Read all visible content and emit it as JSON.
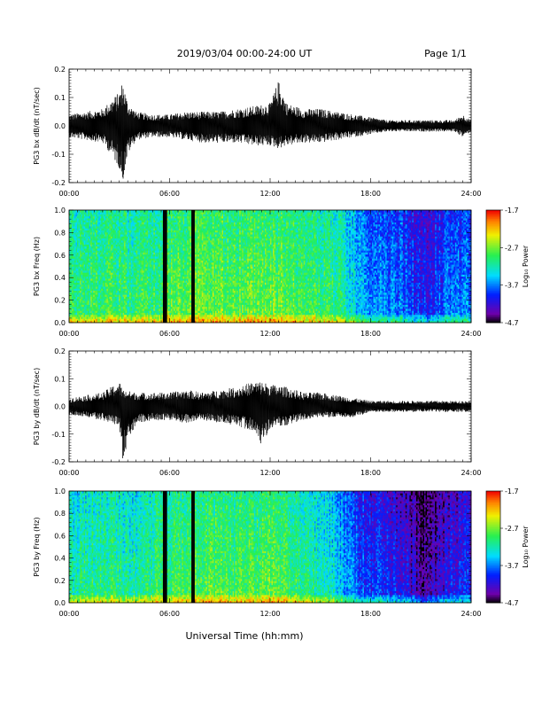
{
  "header": {
    "date_range": "2019/03/04  00:00-24:00 UT",
    "page": "Page 1/1"
  },
  "xaxis": {
    "label": "Universal Time (hh:mm)",
    "ticks": [
      "00:00",
      "06:00",
      "12:00",
      "18:00",
      "24:00"
    ]
  },
  "colorbar": {
    "label": "Log₁₀ Power",
    "ticks": [
      "-1.7",
      "-2.7",
      "-3.7",
      "-4.7"
    ],
    "range": [
      -4.7,
      -1.7
    ]
  },
  "chart_data": [
    {
      "type": "line",
      "ylabel": "PG3 bx dB/dt (nT/sec)",
      "xlim": [
        0,
        24
      ],
      "ylim": [
        -0.2,
        0.2
      ],
      "yticks": [
        "0.2",
        "0.1",
        "0.0",
        "-0.1",
        "-0.2"
      ],
      "envelope": {
        "x_hours": [
          0,
          1,
          2,
          2.5,
          3,
          3.2,
          3.5,
          4,
          5,
          6,
          7,
          8,
          9,
          10,
          11,
          12,
          12.5,
          13,
          14,
          15,
          16,
          17,
          18,
          19,
          20,
          21,
          22,
          23,
          23.5,
          24
        ],
        "max": [
          0.04,
          0.05,
          0.06,
          0.09,
          0.12,
          0.16,
          0.08,
          0.05,
          0.04,
          0.04,
          0.05,
          0.05,
          0.05,
          0.06,
          0.07,
          0.08,
          0.16,
          0.08,
          0.06,
          0.06,
          0.05,
          0.04,
          0.03,
          0.02,
          0.02,
          0.02,
          0.02,
          0.02,
          0.04,
          0.02
        ],
        "min": [
          -0.04,
          -0.05,
          -0.06,
          -0.1,
          -0.15,
          -0.2,
          -0.1,
          -0.05,
          -0.04,
          -0.04,
          -0.05,
          -0.06,
          -0.06,
          -0.06,
          -0.07,
          -0.07,
          -0.08,
          -0.07,
          -0.06,
          -0.06,
          -0.05,
          -0.04,
          -0.03,
          -0.02,
          -0.02,
          -0.02,
          -0.02,
          -0.02,
          -0.04,
          -0.02
        ]
      }
    },
    {
      "type": "heatmap",
      "ylabel": "PG3 bx Freq (Hz)",
      "xlim": [
        0,
        24
      ],
      "ylim": [
        0,
        1
      ],
      "yticks": [
        "1.0",
        "0.8",
        "0.6",
        "0.4",
        "0.2",
        "0.0"
      ],
      "zlim": [
        -4.7,
        -1.7
      ],
      "power_hours": [
        0,
        2,
        4,
        6,
        8,
        10,
        12,
        14,
        16,
        17,
        18,
        19,
        20,
        21,
        22,
        23,
        24
      ],
      "power_log10": [
        -3.0,
        -2.9,
        -2.95,
        -2.8,
        -2.7,
        -2.75,
        -2.7,
        -2.85,
        -3.0,
        -3.3,
        -3.6,
        -3.7,
        -3.7,
        -4.0,
        -3.8,
        -3.7,
        -3.6
      ],
      "data_gaps_hours": [
        [
          5.6,
          5.85
        ],
        [
          7.3,
          7.5
        ]
      ]
    },
    {
      "type": "line",
      "ylabel": "PG3 by dB/dt (nT/sec)",
      "xlim": [
        0,
        24
      ],
      "ylim": [
        -0.2,
        0.2
      ],
      "yticks": [
        "0.2",
        "0.1",
        "0.0",
        "-0.1",
        "-0.2"
      ],
      "envelope": {
        "x_hours": [
          0,
          1,
          2,
          3,
          3.2,
          4,
          5,
          6,
          7,
          8,
          9,
          10,
          11,
          11.5,
          12,
          13,
          14,
          15,
          16,
          17,
          18,
          19,
          20,
          21,
          22,
          23,
          24
        ],
        "max": [
          0.03,
          0.04,
          0.05,
          0.09,
          0.06,
          0.05,
          0.05,
          0.05,
          0.06,
          0.05,
          0.06,
          0.07,
          0.09,
          0.09,
          0.08,
          0.07,
          0.05,
          0.05,
          0.04,
          0.03,
          0.02,
          0.02,
          0.02,
          0.02,
          0.02,
          0.02,
          0.02
        ],
        "min": [
          -0.03,
          -0.04,
          -0.05,
          -0.07,
          -0.2,
          -0.06,
          -0.05,
          -0.05,
          -0.06,
          -0.05,
          -0.06,
          -0.07,
          -0.09,
          -0.14,
          -0.08,
          -0.07,
          -0.05,
          -0.04,
          -0.04,
          -0.04,
          -0.02,
          -0.02,
          -0.02,
          -0.02,
          -0.02,
          -0.02,
          -0.02
        ]
      }
    },
    {
      "type": "heatmap",
      "ylabel": "PG3 by Freq (Hz)",
      "xlim": [
        0,
        24
      ],
      "ylim": [
        0,
        1
      ],
      "yticks": [
        "1.0",
        "0.8",
        "0.6",
        "0.4",
        "0.2",
        "0.0"
      ],
      "zlim": [
        -4.7,
        -1.7
      ],
      "power_hours": [
        0,
        2,
        4,
        6,
        8,
        10,
        12,
        14,
        16,
        17,
        18,
        19,
        20,
        21,
        22,
        23,
        24
      ],
      "power_log10": [
        -3.1,
        -3.0,
        -3.1,
        -2.9,
        -2.8,
        -2.85,
        -2.8,
        -3.0,
        -3.3,
        -3.7,
        -3.9,
        -4.0,
        -4.0,
        -4.4,
        -4.2,
        -4.0,
        -4.0
      ],
      "data_gaps_hours": [
        [
          5.6,
          5.85
        ],
        [
          7.3,
          7.5
        ]
      ]
    }
  ]
}
